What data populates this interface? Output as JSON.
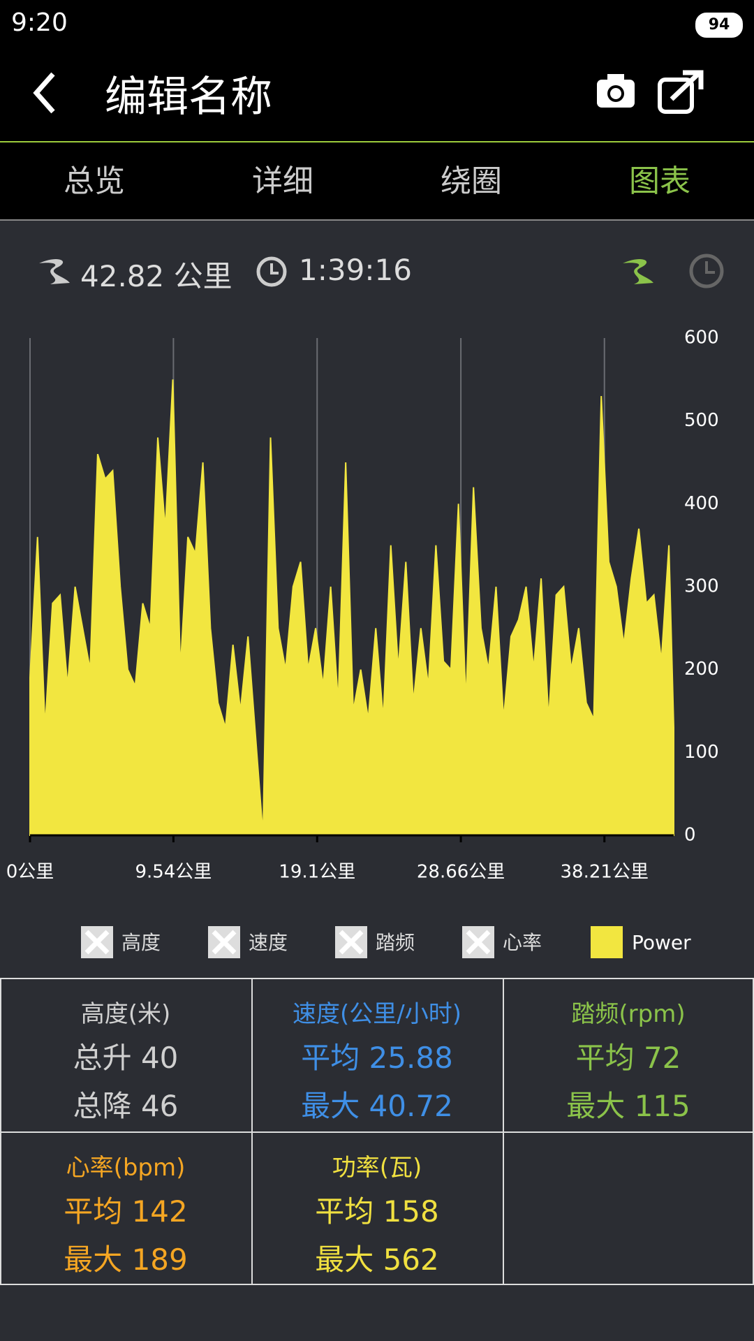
{
  "status_bar": {
    "time": "9:20",
    "battery": "94"
  },
  "header": {
    "title": "编辑名称"
  },
  "tabs": [
    "总览",
    "详细",
    "绕圈",
    "图表"
  ],
  "summary": {
    "distance": "42.82 公里",
    "duration": "1:39:16"
  },
  "chart_data": {
    "type": "area",
    "x": [
      0,
      0.5,
      1,
      1.5,
      2,
      2.5,
      3,
      3.5,
      4,
      4.5,
      5,
      5.5,
      6,
      6.5,
      7,
      7.5,
      8,
      8.5,
      9,
      9.5,
      10,
      10.5,
      11,
      11.5,
      12,
      12.5,
      13,
      13.5,
      14,
      14.5,
      15,
      15.5,
      16,
      16.5,
      17,
      17.5,
      18,
      18.5,
      19,
      19.5,
      20,
      20.5,
      21,
      21.5,
      22,
      22.5,
      23,
      23.5,
      24,
      24.5,
      25,
      25.5,
      26,
      26.5,
      27,
      27.5,
      28,
      28.5,
      29,
      29.5,
      30,
      30.5,
      31,
      31.5,
      32,
      32.5,
      33,
      33.5,
      34,
      34.5,
      35,
      35.5,
      36,
      36.5,
      37,
      37.5,
      38,
      38.5,
      39,
      39.5,
      40,
      40.5,
      41,
      41.5,
      42,
      42.5,
      42.82
    ],
    "series": [
      {
        "name": "Power",
        "color": "#f2e640",
        "values": [
          190,
          360,
          130,
          280,
          290,
          180,
          300,
          250,
          200,
          460,
          430,
          440,
          300,
          200,
          180,
          280,
          250,
          480,
          370,
          550,
          200,
          360,
          340,
          450,
          250,
          160,
          130,
          230,
          150,
          240,
          120,
          0,
          480,
          250,
          200,
          300,
          330,
          200,
          250,
          180,
          300,
          160,
          450,
          150,
          200,
          140,
          250,
          140,
          350,
          200,
          330,
          160,
          250,
          180,
          350,
          210,
          200,
          400,
          160,
          420,
          250,
          200,
          300,
          140,
          240,
          260,
          300,
          200,
          310,
          140,
          290,
          300,
          200,
          250,
          160,
          140,
          530,
          330,
          300,
          230,
          310,
          370,
          280,
          290,
          210,
          350,
          130
        ]
      }
    ],
    "hidden_series": [
      "高度",
      "速度",
      "踏频",
      "心率"
    ],
    "xlim": [
      0,
      42.82
    ],
    "xticks": [
      {
        "value": 0,
        "label": "0公里"
      },
      {
        "value": 9.54,
        "label": "9.54公里"
      },
      {
        "value": 19.1,
        "label": "19.1公里"
      },
      {
        "value": 28.66,
        "label": "28.66公里"
      },
      {
        "value": 38.21,
        "label": "38.21公里"
      }
    ],
    "ylim": [
      0,
      600
    ],
    "yticks": [
      0,
      100,
      200,
      300,
      400,
      500,
      600
    ],
    "grid": true
  },
  "stats": [
    {
      "title": "高度(米)",
      "lines": [
        "总升 40",
        "总降 46"
      ]
    },
    {
      "title": "速度(公里/小时)",
      "lines": [
        "平均 25.88",
        "最大 40.72"
      ]
    },
    {
      "title": "踏频(rpm)",
      "lines": [
        "平均 72",
        "最大 115"
      ]
    },
    {
      "title": "心率(bpm)",
      "lines": [
        "平均 142",
        "最大 189"
      ]
    },
    {
      "title": "功率(瓦)",
      "lines": [
        "平均 158",
        "最大 562"
      ]
    }
  ]
}
